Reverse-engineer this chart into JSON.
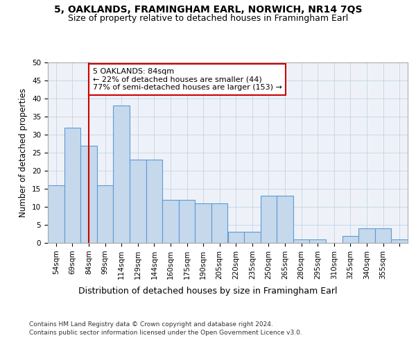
{
  "title1": "5, OAKLANDS, FRAMINGHAM EARL, NORWICH, NR14 7QS",
  "title2": "Size of property relative to detached houses in Framingham Earl",
  "xlabel": "Distribution of detached houses by size in Framingham Earl",
  "ylabel": "Number of detached properties",
  "footer1": "Contains HM Land Registry data © Crown copyright and database right 2024.",
  "footer2": "Contains public sector information licensed under the Open Government Licence v3.0.",
  "bar_values": [
    16,
    32,
    27,
    16,
    38,
    23,
    23,
    12,
    12,
    11,
    11,
    3,
    3,
    13,
    13,
    1,
    1,
    0,
    2,
    4,
    4,
    1
  ],
  "tick_labels": [
    "54sqm",
    "69sqm",
    "84sqm",
    "99sqm",
    "114sqm",
    "129sqm",
    "144sqm",
    "160sqm",
    "175sqm",
    "190sqm",
    "205sqm",
    "220sqm",
    "235sqm",
    "250sqm",
    "265sqm",
    "280sqm",
    "295sqm",
    "310sqm",
    "325sqm",
    "340sqm",
    "355sqm",
    ""
  ],
  "bar_color": "#c5d8ec",
  "bar_edge_color": "#5b9bd5",
  "grid_color": "#c8d8e8",
  "annotation_text": "5 OAKLANDS: 84sqm\n← 22% of detached houses are smaller (44)\n77% of semi-detached houses are larger (153) →",
  "annotation_box_color": "#ffffff",
  "annotation_border_color": "#cc0000",
  "vline_color": "#cc0000",
  "vline_x": 2,
  "ylim": [
    0,
    50
  ],
  "yticks": [
    0,
    5,
    10,
    15,
    20,
    25,
    30,
    35,
    40,
    45,
    50
  ],
  "background_color": "#eef2f8",
  "title1_fontsize": 10,
  "title2_fontsize": 9,
  "ylabel_fontsize": 8.5,
  "xlabel_fontsize": 9,
  "tick_fontsize": 7.5,
  "footer_fontsize": 6.5
}
